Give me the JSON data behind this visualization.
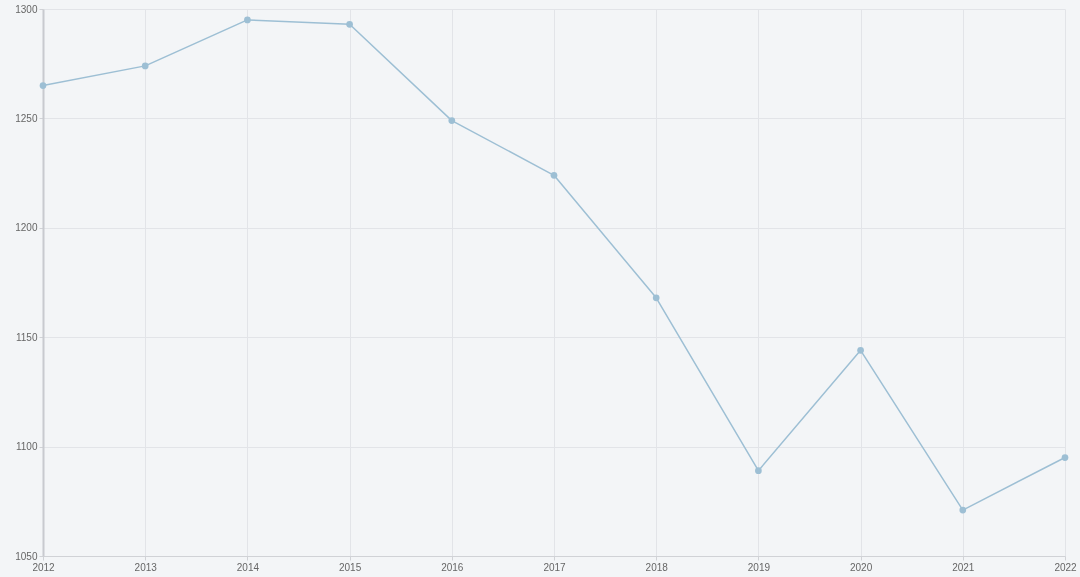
{
  "chart_data": {
    "type": "line",
    "categories": [
      "2012",
      "2013",
      "2014",
      "2015",
      "2016",
      "2017",
      "2018",
      "2019",
      "2020",
      "2021",
      "2022"
    ],
    "series": [
      {
        "color": "#9dbfd4",
        "values": [
          1265,
          1274,
          1295,
          1293,
          1249,
          1224,
          1168,
          1089,
          1144,
          1071,
          1095
        ]
      }
    ],
    "ylim": [
      1050,
      1300
    ],
    "yticks": [
      1050,
      1100,
      1150,
      1200,
      1250,
      1300
    ],
    "grid": true,
    "marker": "circle",
    "line_style": "solid"
  }
}
